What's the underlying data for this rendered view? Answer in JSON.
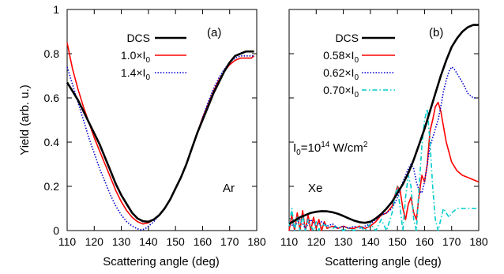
{
  "chart_data": [
    {
      "type": "line",
      "panel_label": "(a)",
      "element_label": "Ar",
      "xlabel": "Scattering angle (deg)",
      "ylabel": "Yield (arb. u.)",
      "xlim": [
        110,
        180
      ],
      "ylim": [
        0,
        1
      ],
      "xticks": [
        "110",
        "120",
        "130",
        "140",
        "150",
        "160",
        "170",
        "180"
      ],
      "yticks": [
        "0",
        "0.2",
        "0.4",
        "0.6",
        "0.8",
        "1"
      ],
      "legend_position": "top-left",
      "series": [
        {
          "name": "DCS",
          "color": "#000000",
          "dash": "solid",
          "x": [
            110,
            112,
            114,
            116,
            118,
            120,
            122,
            124,
            126,
            128,
            130,
            132,
            134,
            136,
            138,
            140,
            142,
            144,
            146,
            148,
            150,
            152,
            154,
            156,
            158,
            160,
            162,
            164,
            166,
            168,
            170,
            172,
            174,
            176,
            178,
            179
          ],
          "y": [
            0.67,
            0.63,
            0.59,
            0.54,
            0.49,
            0.44,
            0.39,
            0.33,
            0.27,
            0.21,
            0.16,
            0.12,
            0.08,
            0.055,
            0.042,
            0.04,
            0.05,
            0.07,
            0.1,
            0.14,
            0.19,
            0.24,
            0.3,
            0.37,
            0.44,
            0.5,
            0.56,
            0.62,
            0.67,
            0.72,
            0.76,
            0.79,
            0.8,
            0.81,
            0.81,
            0.81
          ]
        },
        {
          "name": "1.0×I0",
          "color": "#ff0000",
          "dash": "solid",
          "x": [
            110,
            111,
            112,
            114,
            116,
            118,
            120,
            122,
            124,
            126,
            128,
            130,
            132,
            134,
            136,
            138,
            140,
            142,
            144,
            146,
            148,
            150,
            152,
            154,
            156,
            158,
            160,
            162,
            164,
            166,
            168,
            170,
            172,
            174,
            176,
            178,
            179
          ],
          "y": [
            0.85,
            0.79,
            0.73,
            0.64,
            0.56,
            0.49,
            0.42,
            0.36,
            0.3,
            0.24,
            0.18,
            0.13,
            0.09,
            0.06,
            0.04,
            0.03,
            0.035,
            0.05,
            0.07,
            0.1,
            0.14,
            0.19,
            0.24,
            0.3,
            0.37,
            0.44,
            0.51,
            0.57,
            0.63,
            0.68,
            0.72,
            0.75,
            0.77,
            0.78,
            0.78,
            0.78,
            0.79
          ]
        },
        {
          "name": "1.4×I0",
          "color": "#0000cc",
          "dash": "dotted",
          "x": [
            110,
            112,
            114,
            116,
            118,
            120,
            122,
            124,
            126,
            128,
            130,
            132,
            134,
            136,
            137,
            138,
            139,
            140,
            142,
            144,
            146,
            148,
            150,
            152,
            154,
            156,
            158,
            160,
            162,
            164,
            166,
            168,
            170,
            172,
            174,
            176,
            178,
            179
          ],
          "y": [
            0.74,
            0.66,
            0.58,
            0.5,
            0.42,
            0.35,
            0.28,
            0.22,
            0.16,
            0.11,
            0.07,
            0.04,
            0.02,
            0.008,
            0.004,
            0.005,
            0.01,
            0.02,
            0.04,
            0.07,
            0.1,
            0.14,
            0.19,
            0.24,
            0.3,
            0.37,
            0.44,
            0.51,
            0.58,
            0.64,
            0.69,
            0.73,
            0.76,
            0.78,
            0.79,
            0.79,
            0.79,
            0.79
          ]
        }
      ]
    },
    {
      "type": "line",
      "panel_label": "(b)",
      "element_label": "Xe",
      "annotation": {
        "base": "I",
        "sub": "0",
        "mid": "=10",
        "sup": "14",
        "unit": " W/cm",
        "unit_sup": "2"
      },
      "xlabel": "Scattering angle (deg)",
      "ylabel": "",
      "xlim": [
        110,
        180
      ],
      "ylim": [
        0,
        1
      ],
      "xticks": [
        "110",
        "120",
        "130",
        "140",
        "150",
        "160",
        "170",
        "180"
      ],
      "legend_position": "top-left",
      "series": [
        {
          "name": "DCS",
          "color": "#000000",
          "dash": "solid",
          "x": [
            110,
            112,
            114,
            116,
            118,
            120,
            122,
            124,
            126,
            128,
            130,
            132,
            134,
            136,
            138,
            140,
            142,
            144,
            146,
            148,
            150,
            152,
            154,
            156,
            158,
            160,
            162,
            164,
            166,
            168,
            170,
            172,
            174,
            176,
            178,
            180
          ],
          "y": [
            0.03,
            0.045,
            0.06,
            0.07,
            0.08,
            0.085,
            0.088,
            0.087,
            0.083,
            0.076,
            0.066,
            0.055,
            0.045,
            0.038,
            0.035,
            0.04,
            0.055,
            0.075,
            0.1,
            0.13,
            0.17,
            0.21,
            0.26,
            0.32,
            0.39,
            0.46,
            0.54,
            0.62,
            0.7,
            0.77,
            0.83,
            0.87,
            0.9,
            0.92,
            0.93,
            0.93
          ]
        },
        {
          "name": "0.58×I0",
          "color": "#ff0000",
          "dash": "solid",
          "x": [
            110,
            111,
            112,
            113,
            114,
            115,
            116,
            117,
            118,
            119,
            120,
            121,
            122,
            123,
            124,
            126,
            128,
            130,
            132,
            134,
            136,
            138,
            140,
            142,
            144,
            146,
            148,
            150,
            151,
            152,
            153,
            154,
            155,
            156,
            157,
            158,
            159,
            160,
            161,
            162,
            163,
            164,
            165,
            166,
            167,
            168,
            170,
            172,
            174,
            176,
            178,
            180
          ],
          "y": [
            0.0,
            0.07,
            0.0,
            0.08,
            0.0,
            0.09,
            0.0,
            0.07,
            0.0,
            0.06,
            0.01,
            0.05,
            0.0,
            0.04,
            0.01,
            0.02,
            0.01,
            0.02,
            0.01,
            0.01,
            0.02,
            0.01,
            0.02,
            0.04,
            0.07,
            0.08,
            0.11,
            0.2,
            0.18,
            0.1,
            0.05,
            0.12,
            0.15,
            0.08,
            0.05,
            0.16,
            0.25,
            0.22,
            0.3,
            0.45,
            0.5,
            0.56,
            0.58,
            0.54,
            0.47,
            0.4,
            0.31,
            0.27,
            0.25,
            0.24,
            0.23,
            0.22
          ]
        },
        {
          "name": "0.62×I0",
          "color": "#0000cc",
          "dash": "dotted",
          "x": [
            110,
            112,
            114,
            116,
            118,
            120,
            122,
            124,
            126,
            128,
            130,
            132,
            134,
            136,
            138,
            140,
            142,
            144,
            146,
            148,
            150,
            152,
            154,
            155,
            156,
            157,
            158,
            159,
            160,
            161,
            162,
            163,
            164,
            165,
            166,
            167,
            168,
            169,
            170,
            171,
            172,
            174,
            176,
            178,
            179
          ],
          "y": [
            0.03,
            0.02,
            0.05,
            0.01,
            0.05,
            0.02,
            0.04,
            0.02,
            0.03,
            0.01,
            0.02,
            0.01,
            0.02,
            0.01,
            0.02,
            0.03,
            0.05,
            0.07,
            0.08,
            0.1,
            0.15,
            0.22,
            0.28,
            0.3,
            0.28,
            0.22,
            0.18,
            0.17,
            0.22,
            0.3,
            0.38,
            0.42,
            0.46,
            0.5,
            0.56,
            0.63,
            0.68,
            0.72,
            0.74,
            0.73,
            0.71,
            0.67,
            0.62,
            0.6,
            0.6
          ]
        },
        {
          "name": "0.70×I0",
          "color": "#00cccc",
          "dash": "dashdot",
          "x": [
            110,
            111,
            112,
            113,
            114,
            115,
            116,
            117,
            118,
            119,
            120,
            121,
            122,
            124,
            126,
            128,
            130,
            132,
            134,
            136,
            138,
            140,
            142,
            144,
            146,
            148,
            149,
            150,
            151,
            152,
            153,
            154,
            155,
            156,
            157,
            158,
            159,
            160,
            161,
            162,
            163,
            164,
            165,
            166,
            167,
            168,
            169,
            170,
            172,
            174,
            176,
            178,
            180
          ],
          "y": [
            0.02,
            0.1,
            0.0,
            0.06,
            0.0,
            0.07,
            0.0,
            0.05,
            0.02,
            0.0,
            0.04,
            0.0,
            0.03,
            0.02,
            0.01,
            0.02,
            0.0,
            0.01,
            0.0,
            0.02,
            0.0,
            0.03,
            0.0,
            0.05,
            0.0,
            0.08,
            0.15,
            0.2,
            0.1,
            0.0,
            0.15,
            0.25,
            0.2,
            0.05,
            0.0,
            0.2,
            0.38,
            0.5,
            0.55,
            0.4,
            0.2,
            0.05,
            0.0,
            0.05,
            0.1,
            0.08,
            0.06,
            0.08,
            0.1,
            0.1,
            0.1,
            0.1,
            0.1
          ]
        }
      ]
    }
  ]
}
